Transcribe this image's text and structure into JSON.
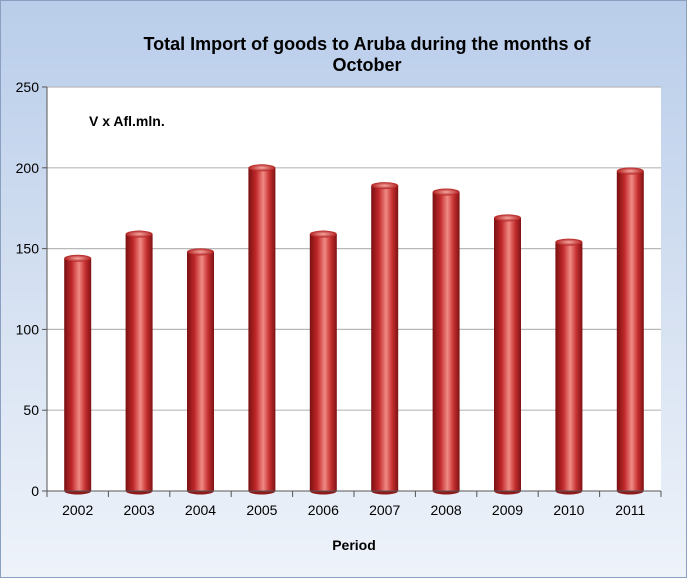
{
  "chart_data": {
    "type": "bar",
    "title_lines": [
      "Total Import of goods to Aruba during the months of",
      "October"
    ],
    "ylabel": "V x Afl.mln.",
    "xlabel": "Period",
    "categories": [
      "2002",
      "2003",
      "2004",
      "2005",
      "2006",
      "2007",
      "2008",
      "2009",
      "2010",
      "2011"
    ],
    "values": [
      144,
      159,
      148,
      200,
      159,
      189,
      185,
      169,
      154,
      198
    ],
    "ylim": [
      0,
      250
    ],
    "yticks": [
      "0",
      "50",
      "100",
      "150",
      "200",
      "250"
    ],
    "grid": true,
    "bar_color": "#c0282a"
  }
}
